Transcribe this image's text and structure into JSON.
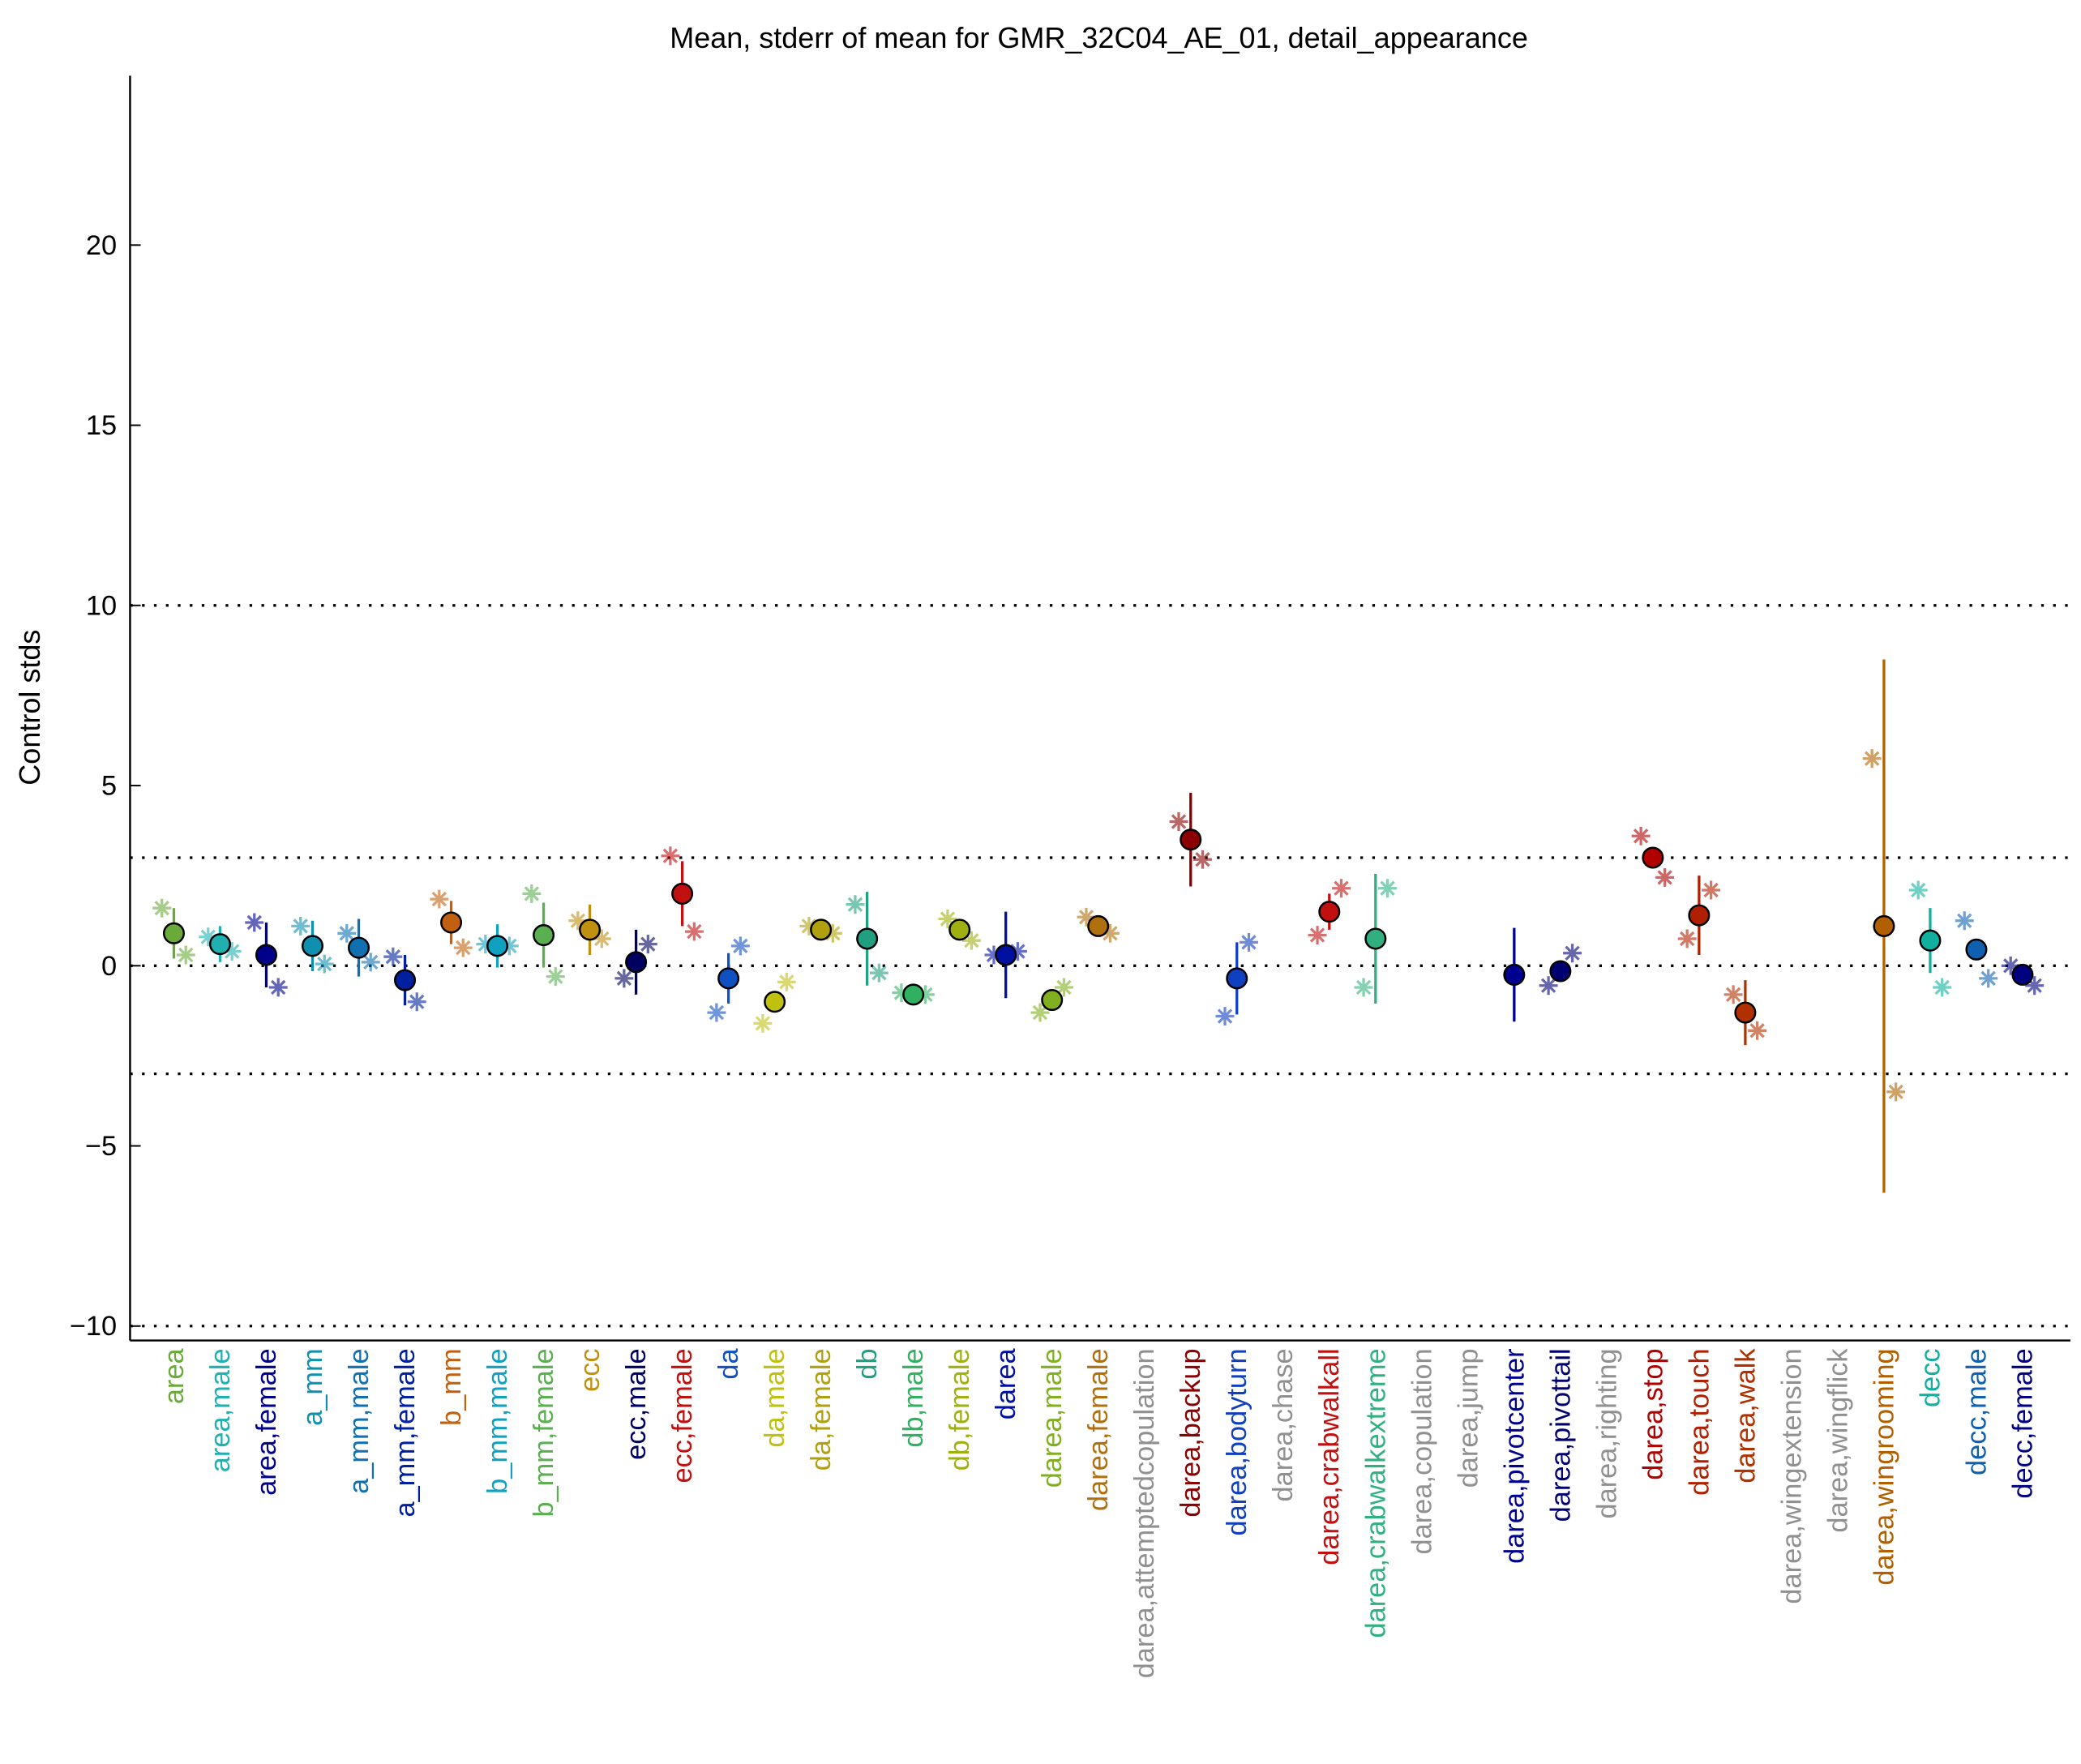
{
  "chart_data": {
    "type": "errorpoint",
    "title": "Mean, stderr of mean for GMR_32C04_AE_01, detail_appearance",
    "ylabel": "Control stds",
    "ylim": [
      -10.4,
      24.7
    ],
    "yticks": [
      {
        "value": -10,
        "label": "−10"
      },
      {
        "value": -5,
        "label": "−5"
      },
      0,
      5,
      10,
      15,
      20
    ],
    "reference_lines": [
      -10,
      -3,
      0,
      3,
      10
    ],
    "categories": [
      "area",
      "area,male",
      "area,female",
      "a_mm",
      "a_mm,male",
      "a_mm,female",
      "b_mm",
      "b_mm,male",
      "b_mm,female",
      "ecc",
      "ecc,male",
      "ecc,female",
      "da",
      "da,male",
      "da,female",
      "db",
      "db,male",
      "db,female",
      "darea",
      "darea,male",
      "darea,female",
      "darea,attemptedcopulation",
      "darea,backup",
      "darea,bodyturn",
      "darea,chase",
      "darea,crabwalkall",
      "darea,crabwalkextreme",
      "darea,copulation",
      "darea,jump",
      "darea,pivotcenter",
      "darea,pivottail",
      "darea,righting",
      "darea,stop",
      "darea,touch",
      "darea,walk",
      "darea,wingextension",
      "darea,wingflick",
      "darea,wingrooming",
      "decc",
      "decc,male",
      "decc,female"
    ],
    "colors": [
      "#6aaa3a",
      "#20b0b0",
      "#00008b",
      "#1090b0",
      "#1070b0",
      "#0020a0",
      "#c06010",
      "#10a0c0",
      "#5ab050",
      "#c09010",
      "#000060",
      "#c01010",
      "#1050c0",
      "#c0c010",
      "#b0a010",
      "#20a080",
      "#30b060",
      "#a0b010",
      "#0010a0",
      "#80b020",
      "#b07010",
      "#909090",
      "#8b0000",
      "#1040c0",
      "#909090",
      "#c01010",
      "#30b080",
      "#909090",
      "#909090",
      "#000090",
      "#000070",
      "#909090",
      "#b00000",
      "#b02000",
      "#b03000",
      "#909090",
      "#909090",
      "#b06000",
      "#10b0a0",
      "#1060b0",
      "#000080"
    ],
    "values": [
      0.9,
      0.6,
      0.3,
      0.55,
      0.5,
      -0.4,
      1.2,
      0.55,
      0.85,
      1.0,
      0.1,
      2.0,
      -0.35,
      -1.0,
      1.0,
      0.75,
      -0.8,
      1.0,
      0.3,
      -0.95,
      1.1,
      null,
      3.5,
      -0.35,
      null,
      1.5,
      0.75,
      null,
      null,
      -0.25,
      -0.15,
      null,
      3.0,
      1.4,
      -1.3,
      null,
      null,
      1.1,
      0.7,
      0.45,
      -0.25
    ],
    "errors": [
      0.7,
      0.5,
      0.9,
      0.7,
      0.8,
      0.7,
      0.6,
      0.6,
      0.9,
      0.7,
      0.9,
      0.9,
      0.7,
      0.3,
      0.2,
      1.3,
      0.3,
      0.3,
      1.2,
      0.3,
      0.3,
      null,
      1.3,
      1.0,
      null,
      0.5,
      1.8,
      null,
      null,
      1.3,
      0.25,
      null,
      0.15,
      1.1,
      0.9,
      null,
      null,
      7.4,
      0.9,
      0.3,
      0.2
    ],
    "values_left": [
      1.6,
      0.8,
      1.2,
      1.1,
      0.9,
      0.25,
      1.85,
      0.6,
      2.0,
      1.25,
      -0.35,
      3.05,
      -1.3,
      -1.6,
      1.1,
      1.7,
      -0.75,
      1.3,
      0.3,
      -1.3,
      1.35,
      null,
      4.0,
      -1.4,
      null,
      0.85,
      -0.6,
      null,
      null,
      null,
      -0.55,
      null,
      3.6,
      0.75,
      -0.8,
      null,
      null,
      5.75,
      2.1,
      1.25,
      0.0
    ],
    "values_right": [
      0.3,
      0.4,
      -0.6,
      0.05,
      0.1,
      -1.0,
      0.5,
      0.55,
      -0.3,
      0.75,
      0.6,
      0.95,
      0.55,
      -0.45,
      0.9,
      -0.2,
      -0.8,
      0.7,
      0.4,
      -0.6,
      0.9,
      null,
      2.95,
      0.65,
      null,
      2.15,
      2.15,
      null,
      null,
      null,
      0.35,
      null,
      2.45,
      2.1,
      -1.8,
      null,
      null,
      -3.5,
      -0.6,
      -0.35,
      -0.55
    ]
  }
}
